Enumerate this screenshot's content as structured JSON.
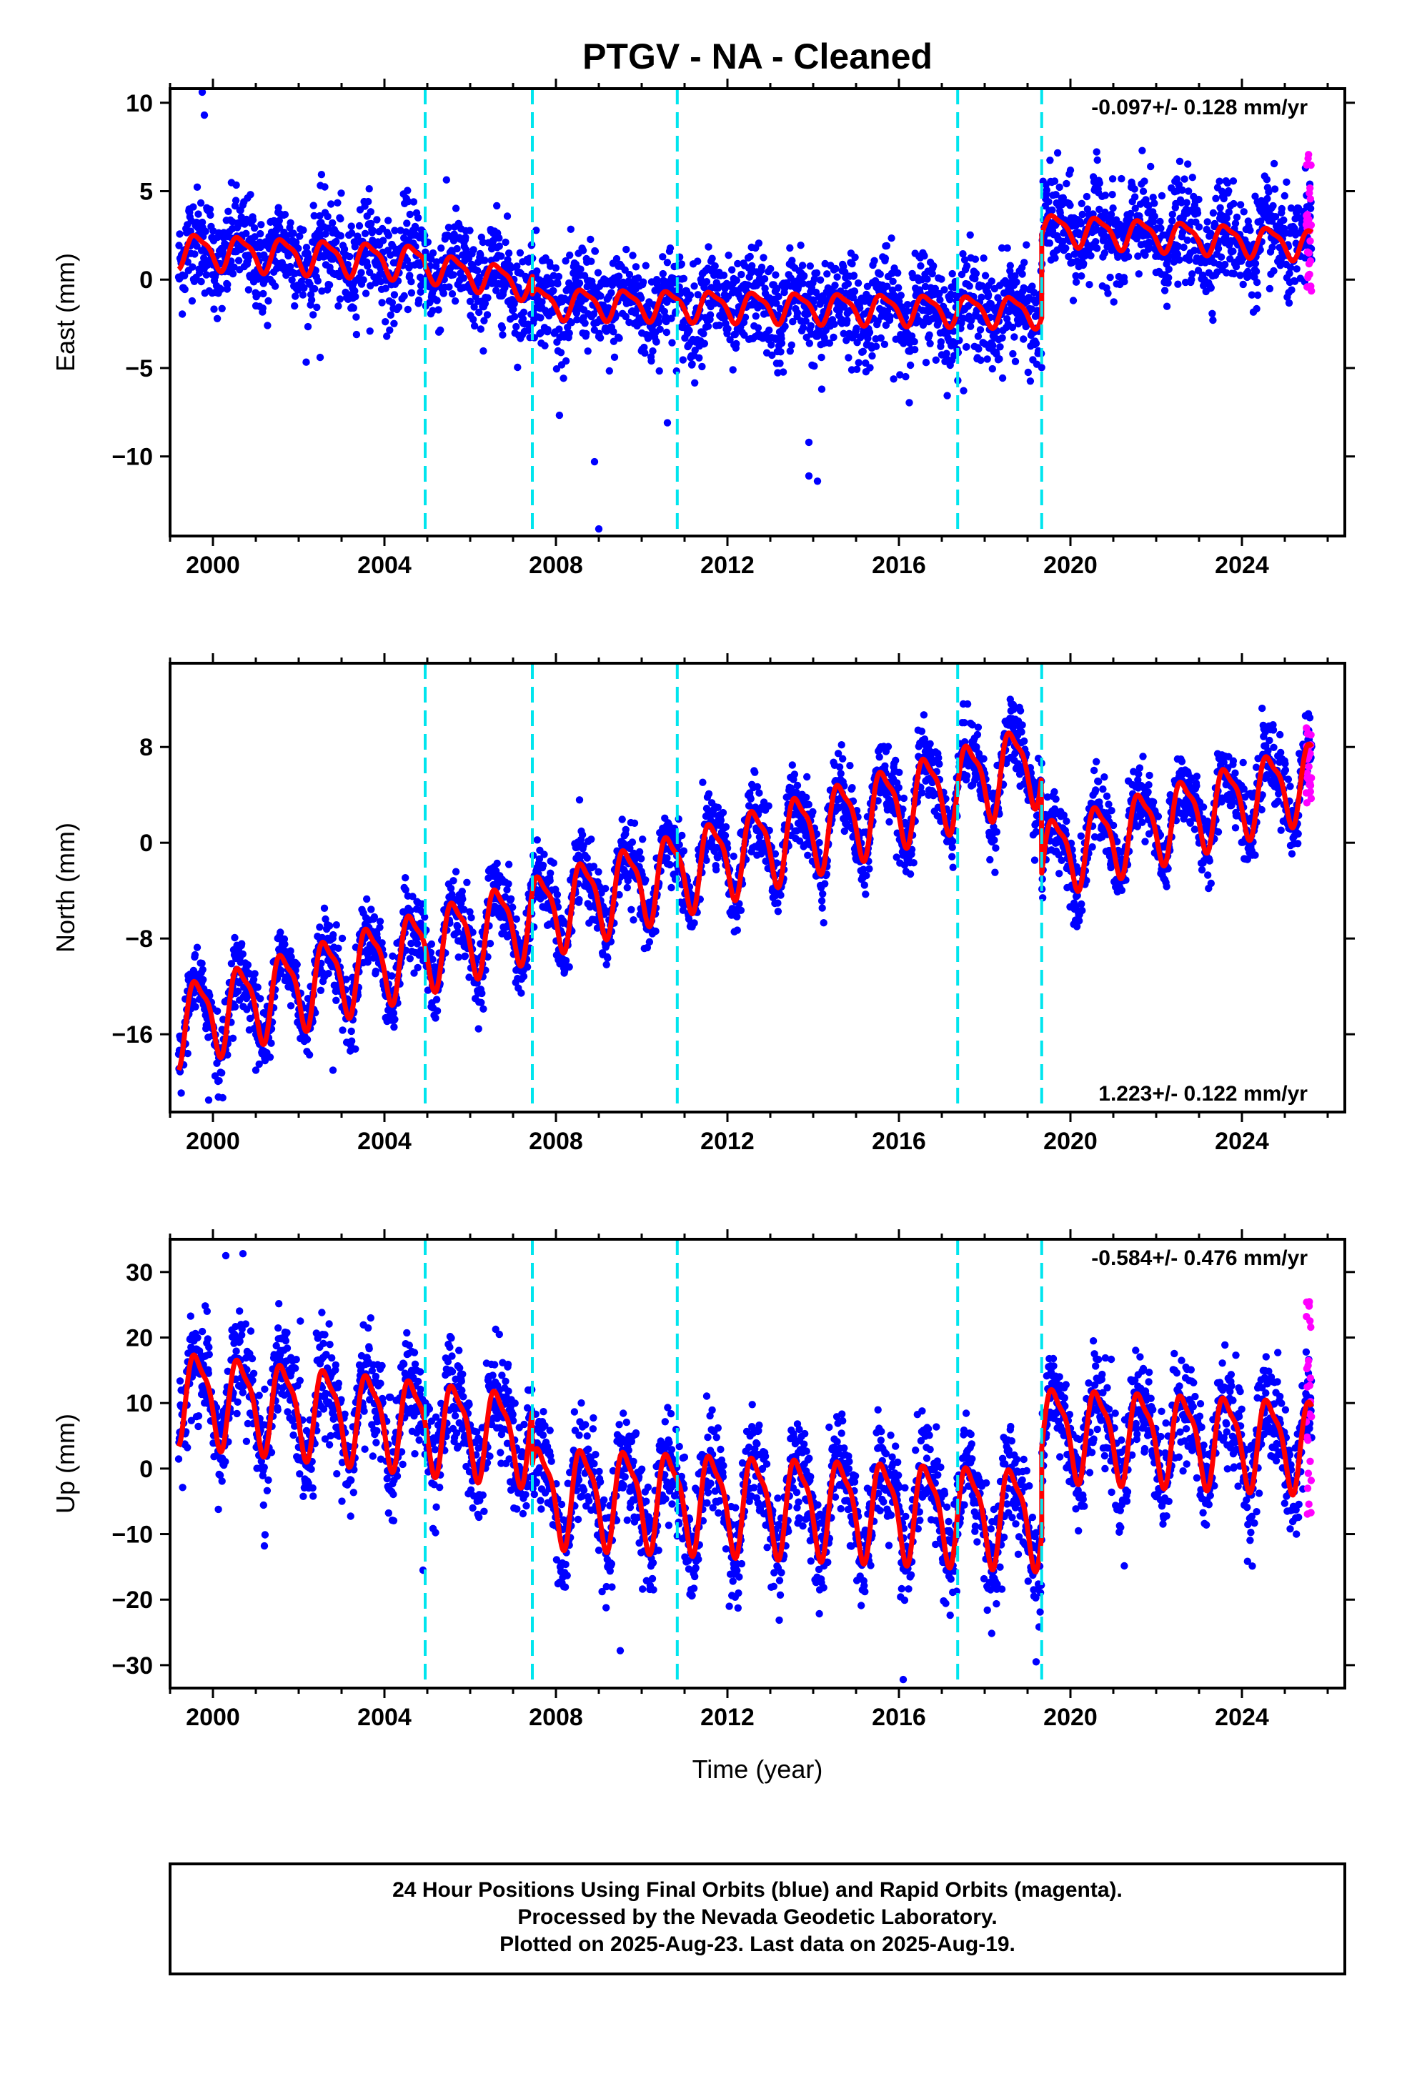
{
  "title": "PTGV  - NA - Cleaned",
  "xlabel": "Time (year)",
  "colors": {
    "final_orbits": "#0000ff",
    "rapid_orbits": "#ff00ff",
    "model": "#ff0000",
    "offsets": "#00e5ee"
  },
  "chart_data": [
    {
      "type": "scatter",
      "component": "east",
      "ylabel": "East (mm)",
      "rate_label": "-0.097+/- 0.128 mm/yr",
      "xlim": [
        1999.0,
        2026.4
      ],
      "ylim": [
        -14.5,
        10.8
      ],
      "x_ticks": [
        2000,
        2004,
        2008,
        2012,
        2016,
        2020,
        2024
      ],
      "x_tick_labels": [
        "2000",
        "2004",
        "2008",
        "2012",
        "2016",
        "2020",
        "2024"
      ],
      "y_ticks": [
        10,
        5,
        0,
        -5,
        -10
      ],
      "y_tick_labels": [
        "10",
        "5",
        "0",
        "−5",
        "−10"
      ],
      "offset_epochs": [
        2004.95,
        2007.45,
        2010.83,
        2017.37,
        2019.33
      ],
      "model_segments": [
        {
          "t_start": 1999.2,
          "t_end": 2004.95,
          "level_start": 1.7,
          "level_end": 1.0,
          "annual_amp": 0.9
        },
        {
          "t_start": 2004.95,
          "t_end": 2007.45,
          "level_start": 0.8,
          "level_end": -0.3,
          "annual_amp": 0.8
        },
        {
          "t_start": 2007.45,
          "t_end": 2019.33,
          "level_start": -1.3,
          "level_end": -1.8,
          "annual_amp": 0.8
        },
        {
          "t_start": 2019.33,
          "t_end": 2025.63,
          "level_start": 2.9,
          "level_end": 2.0,
          "annual_amp": 0.8
        }
      ],
      "scatter_sigma": 1.4,
      "outliers": [
        [
          1999.75,
          10.6
        ],
        [
          1999.8,
          9.3
        ],
        [
          2002.5,
          -4.4
        ],
        [
          2009.0,
          -14.1
        ],
        [
          2008.9,
          -10.3
        ],
        [
          2013.9,
          -9.2
        ],
        [
          2013.9,
          -11.1
        ],
        [
          2014.1,
          -11.4
        ],
        [
          2014.2,
          -6.2
        ],
        [
          2010.6,
          -8.1
        ]
      ],
      "rapid_points": {
        "t_start": 2025.5,
        "t_end": 2025.62,
        "y_min": -0.8,
        "y_max": 7.2
      }
    },
    {
      "type": "scatter",
      "component": "north",
      "ylabel": "North (mm)",
      "rate_label": "1.223+/- 0.122 mm/yr",
      "xlim": [
        1999.0,
        2026.4
      ],
      "ylim": [
        -22.5,
        15.0
      ],
      "x_ticks": [
        2000,
        2004,
        2008,
        2012,
        2016,
        2020,
        2024
      ],
      "x_tick_labels": [
        "2000",
        "2004",
        "2008",
        "2012",
        "2016",
        "2020",
        "2024"
      ],
      "y_ticks": [
        8,
        0,
        -8,
        -16
      ],
      "y_tick_labels": [
        "8",
        "0",
        "−8",
        "−16"
      ],
      "offset_epochs": [
        2004.95,
        2007.45,
        2010.83,
        2017.37,
        2019.33
      ],
      "model_segments": [
        {
          "t_start": 1999.2,
          "t_end": 2019.33,
          "level_start": -15.0,
          "level_end": 7.0,
          "annual_amp": 3.2
        },
        {
          "t_start": 2019.33,
          "t_end": 2025.63,
          "level_start": -1.2,
          "level_end": 5.5,
          "annual_amp": 3.0
        }
      ],
      "scatter_sigma": 1.5,
      "outliers": [
        [
          1999.9,
          -21.5
        ],
        [
          2001.0,
          -19.0
        ],
        [
          2002.8,
          -19.0
        ]
      ],
      "rapid_points": {
        "t_start": 2025.5,
        "t_end": 2025.62,
        "y_min": 2.8,
        "y_max": 10.5
      }
    },
    {
      "type": "scatter",
      "component": "up",
      "ylabel": "Up (mm)",
      "rate_label": "-0.584+/- 0.476 mm/yr",
      "xlim": [
        1999.0,
        2026.4
      ],
      "ylim": [
        -33.5,
        35.0
      ],
      "x_ticks": [
        2000,
        2004,
        2008,
        2012,
        2016,
        2020,
        2024
      ],
      "x_tick_labels": [
        "2000",
        "2004",
        "2008",
        "2012",
        "2016",
        "2020",
        "2024"
      ],
      "y_ticks": [
        30,
        20,
        10,
        0,
        -10,
        -20,
        -30
      ],
      "y_tick_labels": [
        "30",
        "20",
        "10",
        "0",
        "−10",
        "−20",
        "−30"
      ],
      "offset_epochs": [
        2004.95,
        2007.45,
        2010.83,
        2017.37,
        2019.33
      ],
      "model_segments": [
        {
          "t_start": 1999.2,
          "t_end": 2007.45,
          "level_start": 11.5,
          "level_end": 5.0,
          "annual_amp": 6.5
        },
        {
          "t_start": 2007.45,
          "t_end": 2019.33,
          "level_start": -3.5,
          "level_end": -7.0,
          "annual_amp": 7.0
        },
        {
          "t_start": 2019.33,
          "t_end": 2025.63,
          "level_start": 6.0,
          "level_end": 4.0,
          "annual_amp": 6.5
        }
      ],
      "scatter_sigma": 4.0,
      "outliers": [
        [
          2000.3,
          32.5
        ],
        [
          2000.7,
          32.8
        ],
        [
          2009.5,
          -27.8
        ],
        [
          2016.1,
          -32.2
        ],
        [
          2019.2,
          -29.5
        ],
        [
          2004.9,
          -15.5
        ],
        [
          2001.2,
          -11.8
        ]
      ],
      "rapid_points": {
        "t_start": 2025.5,
        "t_end": 2025.62,
        "y_min": -7.5,
        "y_max": 25.5
      }
    }
  ],
  "footer": {
    "line1": "24 Hour Positions Using Final Orbits (blue) and Rapid Orbits (magenta).",
    "line2": "Processed by the Nevada Geodetic Laboratory.",
    "line3": "Plotted on 2025-Aug-23. Last data on 2025-Aug-19."
  }
}
